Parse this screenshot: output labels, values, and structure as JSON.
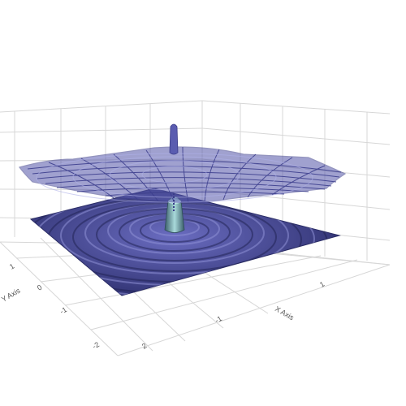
{
  "chart_data": {
    "type": "surface3d",
    "function": "sinc ripple z = sin(r)/r over the x-y grid",
    "surfaces": [
      {
        "kind": "mesh",
        "style": "wireframe",
        "color": "#4b4d9a"
      },
      {
        "kind": "filled",
        "style": "shaded surface",
        "color": "#3b3d85",
        "peak_color": "#6fb0b0"
      }
    ],
    "x_axis": {
      "label": "X Axis",
      "ticks": [
        "-1",
        "1"
      ]
    },
    "y_axis": {
      "label": "Y Axis",
      "ticks": [
        "1",
        "0",
        "-1",
        "-2",
        "2"
      ]
    },
    "grid": true
  }
}
